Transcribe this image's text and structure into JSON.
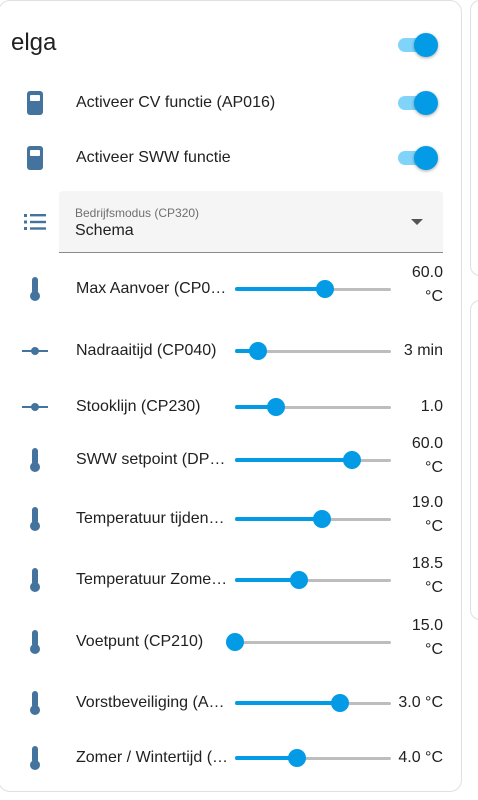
{
  "card": {
    "title": "elga",
    "title_toggle_on": true
  },
  "toggles": [
    {
      "label": "Activeer CV functie (AP016)",
      "icon": "remote-icon",
      "on": true
    },
    {
      "label": "Activeer SWW functie",
      "icon": "remote-icon",
      "on": true
    }
  ],
  "select": {
    "label": "Bedrijfsmodus (CP320)",
    "value": "Schema",
    "icon": "list-icon"
  },
  "sliders": [
    {
      "label": "Max Aanvoer (CP0…",
      "value_line1": "60.0",
      "value_line2": "°C",
      "fraction": 0.58,
      "icon": "thermometer-icon"
    },
    {
      "label": "Nadraaitijd (CP040)",
      "value_line1": "3 min",
      "value_line2": "",
      "fraction": 0.15,
      "icon": "slider-line-icon"
    },
    {
      "label": "Stooklijn (CP230)",
      "value_line1": "1.0",
      "value_line2": "",
      "fraction": 0.26,
      "icon": "slider-line-icon"
    },
    {
      "label": "SWW setpoint (DP0…",
      "value_line1": "60.0",
      "value_line2": "°C",
      "fraction": 0.75,
      "icon": "thermometer-icon"
    },
    {
      "label": "Temperatuur tijden…",
      "value_line1": "19.0",
      "value_line2": "°C",
      "fraction": 0.56,
      "icon": "thermometer-icon"
    },
    {
      "label": "Temperatuur Zome…",
      "value_line1": "18.5",
      "value_line2": "°C",
      "fraction": 0.41,
      "icon": "thermometer-icon"
    },
    {
      "label": "Voetpunt (CP210)",
      "value_line1": "15.0",
      "value_line2": "°C",
      "fraction": 0.0,
      "icon": "thermometer-icon"
    },
    {
      "label": "Vorstbeveiliging (A…",
      "value_line1": "3.0 °C",
      "value_line2": "",
      "fraction": 0.67,
      "icon": "thermometer-icon"
    },
    {
      "label": "Zomer / Wintertijd (…",
      "value_line1": "4.0 °C",
      "value_line2": "",
      "fraction": 0.4,
      "icon": "thermometer-icon"
    }
  ],
  "colors": {
    "accent": "#039be5",
    "icon": "#44739e"
  }
}
